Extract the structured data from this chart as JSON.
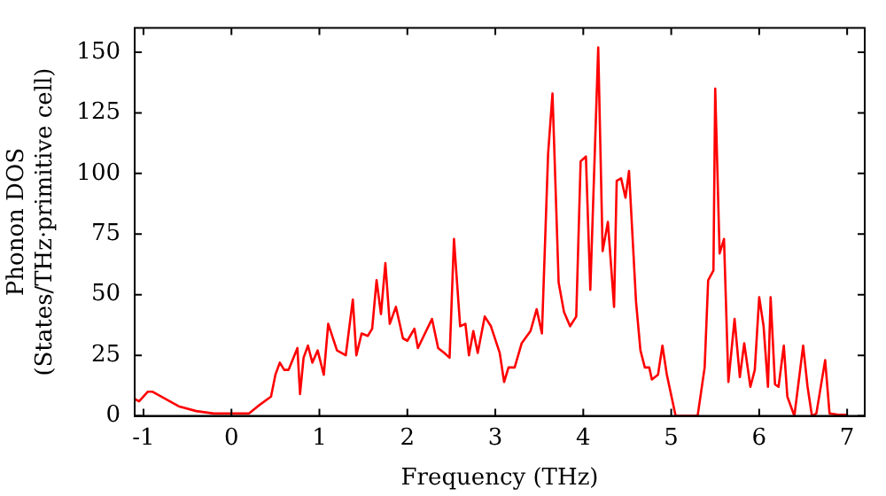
{
  "chart_data": {
    "type": "line",
    "xlabel": "Frequency (THz)",
    "ylabel": "Phonon DOS\n(States/THz·primitive cell)",
    "xlim": [
      -1.1,
      7.2
    ],
    "ylim": [
      0,
      160
    ],
    "xticks": [
      -1,
      0,
      1,
      2,
      3,
      4,
      5,
      6,
      7
    ],
    "yticks": [
      0,
      25,
      50,
      75,
      100,
      125,
      150
    ],
    "grid": false,
    "legend": false,
    "marker": "none",
    "line_style": "solid",
    "series": [
      {
        "color": "#ff0000",
        "x": [
          -1.1,
          -1.05,
          -0.95,
          -0.9,
          -0.8,
          -0.6,
          -0.4,
          -0.2,
          0,
          0.1,
          0.2,
          0.3,
          0.45,
          0.5,
          0.55,
          0.6,
          0.65,
          0.75,
          0.78,
          0.82,
          0.87,
          0.92,
          0.98,
          1.05,
          1.1,
          1.2,
          1.3,
          1.38,
          1.42,
          1.48,
          1.55,
          1.6,
          1.65,
          1.7,
          1.75,
          1.8,
          1.87,
          1.95,
          2.0,
          2.08,
          2.12,
          2.2,
          2.28,
          2.35,
          2.42,
          2.48,
          2.53,
          2.6,
          2.66,
          2.7,
          2.75,
          2.8,
          2.88,
          2.95,
          3.05,
          3.1,
          3.15,
          3.22,
          3.3,
          3.4,
          3.47,
          3.53,
          3.6,
          3.65,
          3.72,
          3.78,
          3.85,
          3.92,
          3.97,
          4.03,
          4.08,
          4.17,
          4.22,
          4.28,
          4.35,
          4.38,
          4.43,
          4.48,
          4.52,
          4.6,
          4.65,
          4.7,
          4.75,
          4.78,
          4.85,
          4.9,
          4.95,
          5.05,
          5.3,
          5.38,
          5.42,
          5.48,
          5.5,
          5.55,
          5.6,
          5.65,
          5.72,
          5.78,
          5.83,
          5.9,
          5.95,
          6.0,
          6.05,
          6.1,
          6.13,
          6.18,
          6.22,
          6.28,
          6.32,
          6.4,
          6.5,
          6.55,
          6.6,
          6.65,
          6.75,
          6.8,
          6.9,
          7.0
        ],
        "values": [
          7,
          6,
          10,
          10,
          8,
          4,
          2,
          1,
          1,
          1,
          1,
          4,
          8,
          17,
          22,
          19,
          19,
          28,
          9,
          24,
          29,
          22,
          27,
          17,
          38,
          27,
          25,
          48,
          25,
          34,
          33,
          36,
          56,
          42,
          63,
          38,
          45,
          32,
          31,
          36,
          28,
          34,
          40,
          28,
          26,
          24,
          73,
          37,
          38,
          25,
          35,
          26,
          41,
          37,
          26,
          14,
          20,
          20,
          30,
          35,
          44,
          34,
          108,
          133,
          55,
          43,
          37,
          41,
          105,
          107,
          52,
          152,
          68,
          80,
          45,
          97,
          98,
          90,
          101,
          47,
          27,
          20,
          20,
          15,
          17,
          29,
          17,
          0,
          0,
          20,
          56,
          60,
          135,
          67,
          73,
          14,
          40,
          16,
          30,
          12,
          19,
          49,
          37,
          12,
          49,
          13,
          12,
          29,
          8,
          0,
          29,
          12,
          0,
          1,
          23,
          1,
          0.5,
          0.5
        ]
      }
    ]
  }
}
